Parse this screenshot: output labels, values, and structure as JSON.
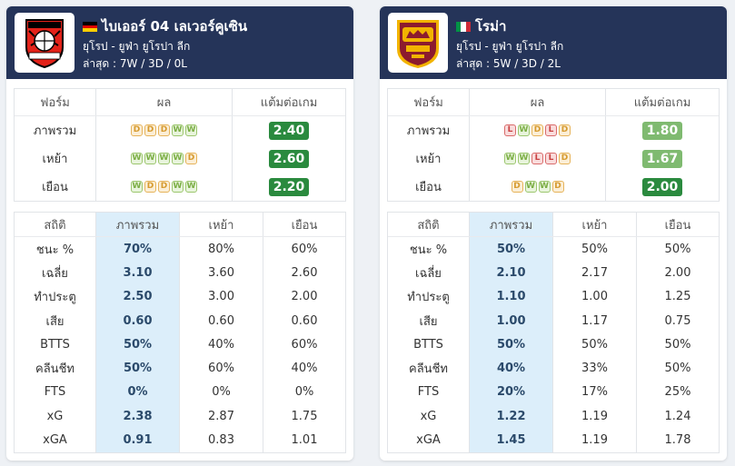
{
  "teams": [
    {
      "name": "ไบเออร์ 04 เลเวอร์คูเซิน",
      "flag": "germany-flag",
      "league": "ยุโรป - ยูฟ่า ยูโรปา ลีก",
      "last": "ล่าสุด : 7W / 3D / 0L",
      "logo": "bayer-leverkusen-crest",
      "form_header": {
        "form": "ฟอร์ม",
        "result": "ผล",
        "ppg": "แต้มต่อเกม"
      },
      "form": [
        {
          "label": "ภาพรวม",
          "results": [
            "D",
            "D",
            "D",
            "W",
            "W"
          ],
          "ppg": "2.40",
          "ppg_color": "#2a8a3e"
        },
        {
          "label": "เหย้า",
          "results": [
            "W",
            "W",
            "W",
            "W",
            "D"
          ],
          "ppg": "2.60",
          "ppg_color": "#2a8a3e"
        },
        {
          "label": "เยือน",
          "results": [
            "W",
            "D",
            "D",
            "W",
            "W"
          ],
          "ppg": "2.20",
          "ppg_color": "#2a8a3e"
        }
      ],
      "stats_header": {
        "stat": "สถิติ",
        "overall": "ภาพรวม",
        "home": "เหย้า",
        "away": "เยือน"
      },
      "stats": [
        {
          "label": "ชนะ %",
          "overall": "70%",
          "home": "80%",
          "away": "60%"
        },
        {
          "label": "เฉลี่ย",
          "overall": "3.10",
          "home": "3.60",
          "away": "2.60"
        },
        {
          "label": "ทำประตู",
          "overall": "2.50",
          "home": "3.00",
          "away": "2.00"
        },
        {
          "label": "เสีย",
          "overall": "0.60",
          "home": "0.60",
          "away": "0.60"
        },
        {
          "label": "BTTS",
          "overall": "50%",
          "home": "40%",
          "away": "60%"
        },
        {
          "label": "คลีนชีท",
          "overall": "50%",
          "home": "60%",
          "away": "40%"
        },
        {
          "label": "FTS",
          "overall": "0%",
          "home": "0%",
          "away": "0%"
        },
        {
          "label": "xG",
          "overall": "2.38",
          "home": "2.87",
          "away": "1.75"
        },
        {
          "label": "xGA",
          "overall": "0.91",
          "home": "0.83",
          "away": "1.01"
        }
      ]
    },
    {
      "name": "โรม่า",
      "flag": "italy-flag",
      "league": "ยุโรป - ยูฟ่า ยูโรปา ลีก",
      "last": "ล่าสุด : 5W / 3D / 2L",
      "logo": "as-roma-crest",
      "form_header": {
        "form": "ฟอร์ม",
        "result": "ผล",
        "ppg": "แต้มต่อเกม"
      },
      "form": [
        {
          "label": "ภาพรวม",
          "results": [
            "L",
            "W",
            "D",
            "L",
            "D"
          ],
          "ppg": "1.80",
          "ppg_color": "#7fba70"
        },
        {
          "label": "เหย้า",
          "results": [
            "W",
            "W",
            "L",
            "L",
            "D"
          ],
          "ppg": "1.67",
          "ppg_color": "#7fba70"
        },
        {
          "label": "เยือน",
          "results": [
            "D",
            "W",
            "W",
            "D"
          ],
          "ppg": "2.00",
          "ppg_color": "#2a8a3e"
        }
      ],
      "stats_header": {
        "stat": "สถิติ",
        "overall": "ภาพรวม",
        "home": "เหย้า",
        "away": "เยือน"
      },
      "stats": [
        {
          "label": "ชนะ %",
          "overall": "50%",
          "home": "50%",
          "away": "50%"
        },
        {
          "label": "เฉลี่ย",
          "overall": "2.10",
          "home": "2.17",
          "away": "2.00"
        },
        {
          "label": "ทำประตู",
          "overall": "1.10",
          "home": "1.00",
          "away": "1.25"
        },
        {
          "label": "เสีย",
          "overall": "1.00",
          "home": "1.17",
          "away": "0.75"
        },
        {
          "label": "BTTS",
          "overall": "50%",
          "home": "50%",
          "away": "50%"
        },
        {
          "label": "คลีนชีท",
          "overall": "40%",
          "home": "33%",
          "away": "50%"
        },
        {
          "label": "FTS",
          "overall": "20%",
          "home": "17%",
          "away": "25%"
        },
        {
          "label": "xG",
          "overall": "1.22",
          "home": "1.19",
          "away": "1.24"
        },
        {
          "label": "xGA",
          "overall": "1.45",
          "home": "1.19",
          "away": "1.78"
        }
      ]
    }
  ]
}
